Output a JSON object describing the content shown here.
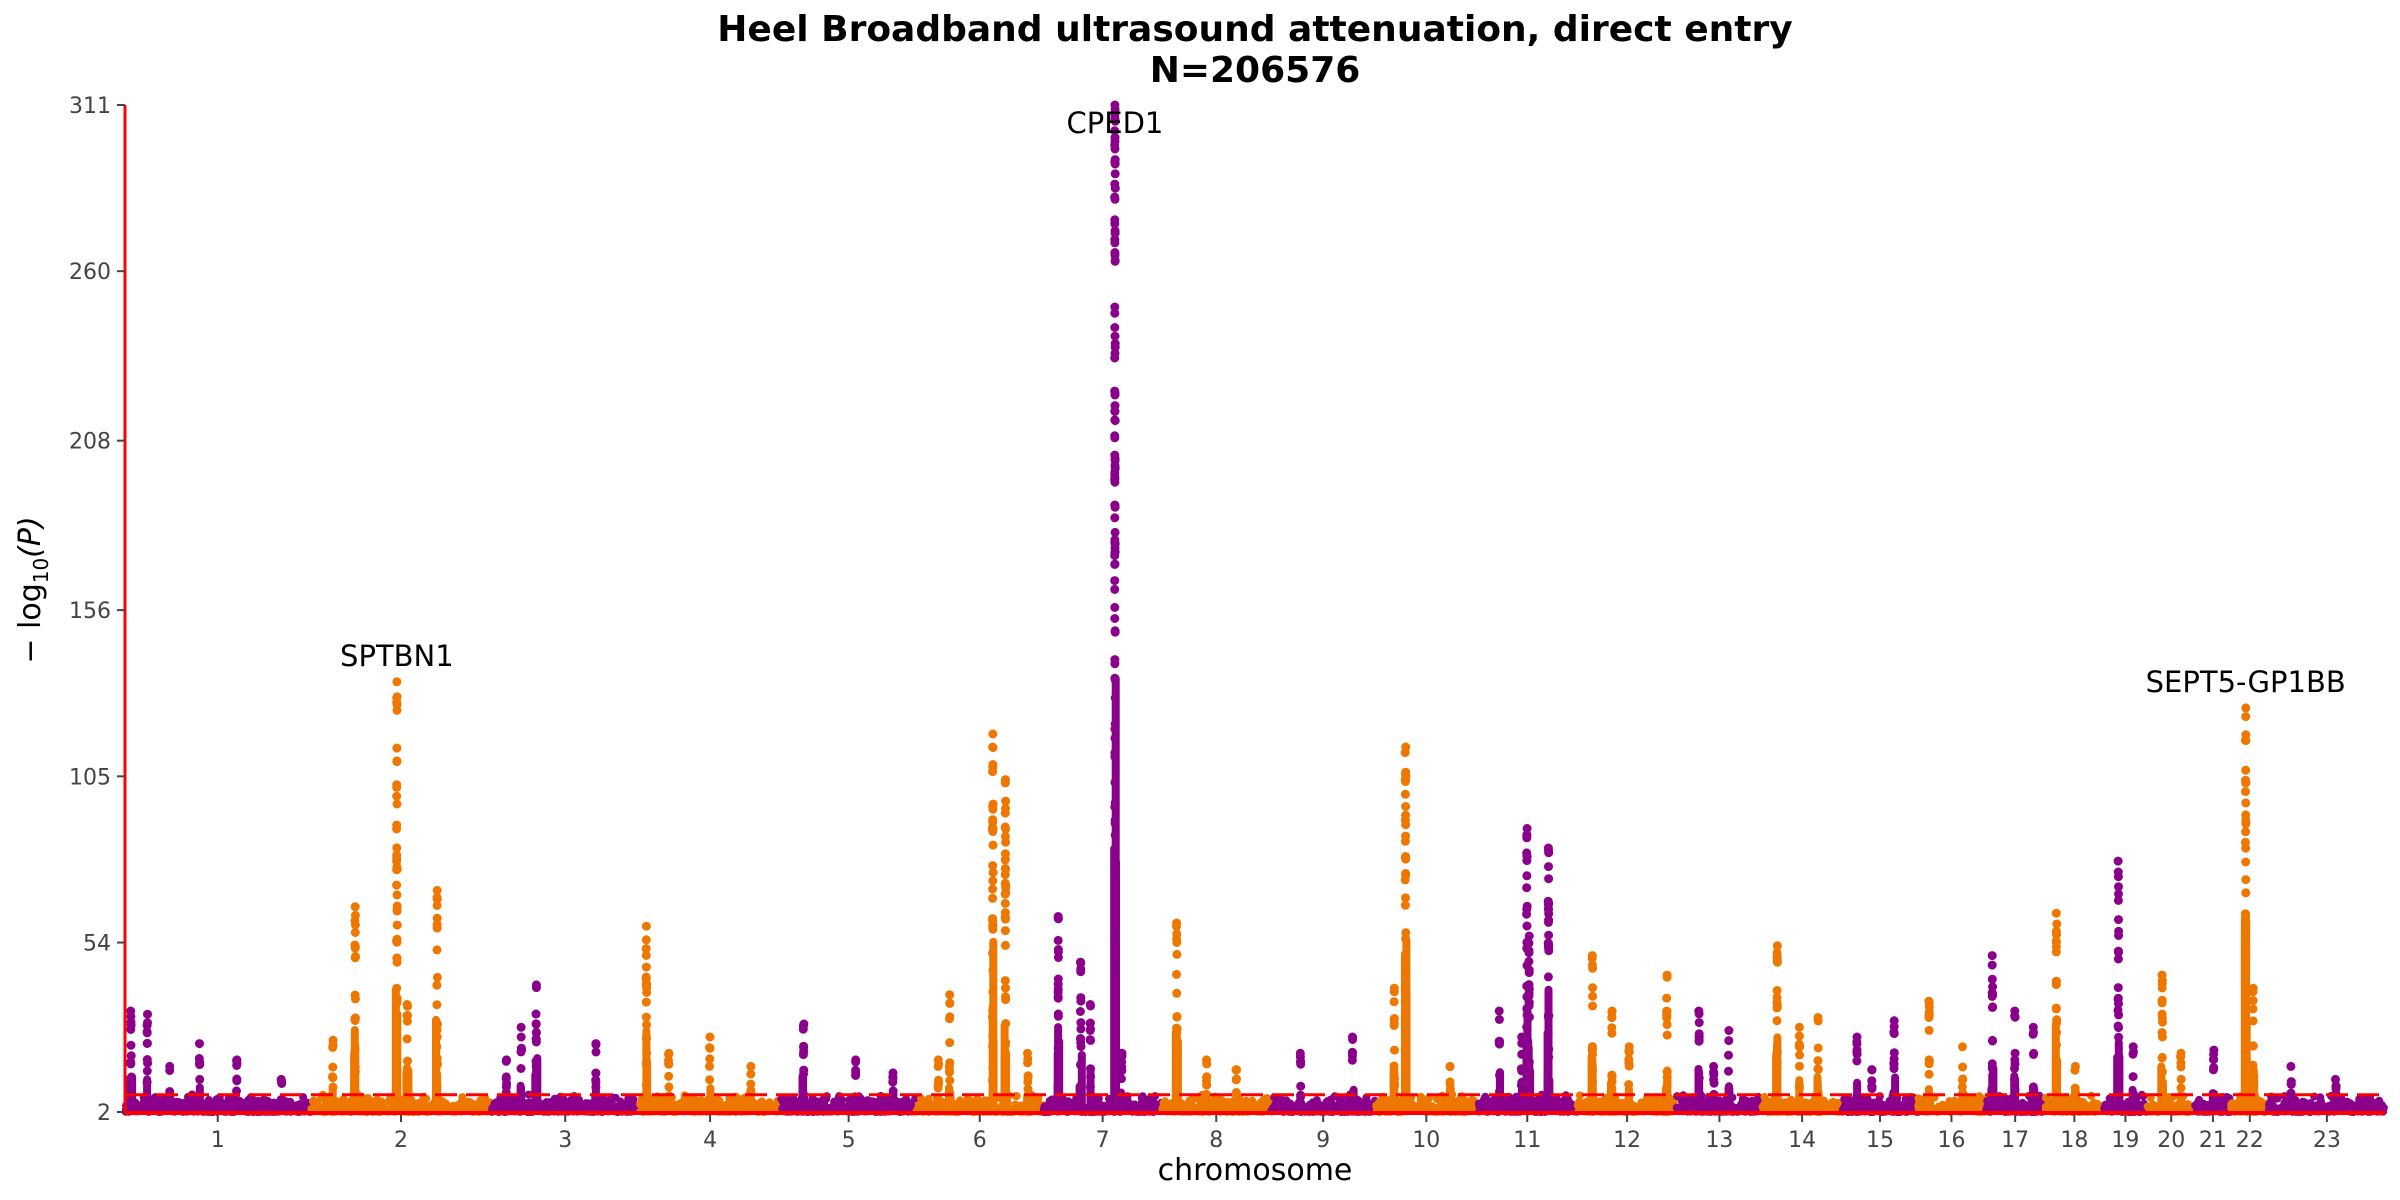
{
  "chart_data": {
    "type": "scatter",
    "subtype": "manhattan",
    "title": "Heel Broadband ultrasound attenuation, direct entry",
    "subtitle": "N=206576",
    "xlabel": "chromosome",
    "ylabel_parts": {
      "prefix": "− log",
      "sub": "10",
      "suffix": "(P)"
    },
    "yticks": [
      "2",
      "54",
      "105",
      "156",
      "208",
      "260",
      "311"
    ],
    "ylim": [
      2,
      311
    ],
    "significance_line": 7.3,
    "colors": {
      "odd": "#8B008B",
      "even": "#EE7700",
      "axis": "#FF0000",
      "threshold": "#FF0000"
    },
    "chromosomes": [
      {
        "label": "1",
        "start": 0,
        "end": 249,
        "peaks": [
          [
            8,
            33
          ],
          [
            30,
            32
          ],
          [
            100,
            23
          ],
          [
            150,
            18
          ],
          [
            210,
            12
          ],
          [
            60,
            16
          ]
        ]
      },
      {
        "label": "2",
        "start": 249,
        "end": 492,
        "peaks": [
          [
            30,
            24
          ],
          [
            60,
            65
          ],
          [
            116,
            134
          ],
          [
            170,
            70
          ],
          [
            130,
            35
          ]
        ]
      },
      {
        "label": "3",
        "start": 492,
        "end": 690,
        "peaks": [
          [
            40,
            28
          ],
          [
            60,
            41
          ],
          [
            140,
            23
          ],
          [
            20,
            18
          ]
        ]
      },
      {
        "label": "4",
        "start": 690,
        "end": 881,
        "peaks": [
          [
            10,
            59
          ],
          [
            95,
            25
          ],
          [
            40,
            20
          ],
          [
            150,
            16
          ]
        ]
      },
      {
        "label": "5",
        "start": 881,
        "end": 1062,
        "peaks": [
          [
            30,
            29
          ],
          [
            100,
            18
          ],
          [
            150,
            14
          ]
        ]
      },
      {
        "label": "6",
        "start": 1062,
        "end": 1233,
        "peaks": [
          [
            30,
            18
          ],
          [
            45,
            38
          ],
          [
            103,
            118
          ],
          [
            120,
            104
          ],
          [
            150,
            20
          ]
        ]
      },
      {
        "label": "7",
        "start": 1233,
        "end": 1392,
        "peaks": [
          [
            20,
            62
          ],
          [
            50,
            48
          ],
          [
            63,
            35
          ],
          [
            96,
            311
          ],
          [
            105,
            20
          ]
        ]
      },
      {
        "label": "8",
        "start": 1392,
        "end": 1538,
        "peaks": [
          [
            20,
            60
          ],
          [
            60,
            18
          ],
          [
            100,
            15
          ]
        ]
      },
      {
        "label": "9",
        "start": 1538,
        "end": 1679,
        "peaks": [
          [
            40,
            20
          ],
          [
            110,
            25
          ]
        ]
      },
      {
        "label": "10",
        "start": 1679,
        "end": 1815,
        "peaks": [
          [
            40,
            114
          ],
          [
            25,
            40
          ],
          [
            100,
            16
          ]
        ]
      },
      {
        "label": "11",
        "start": 1815,
        "end": 1950,
        "peaks": [
          [
            30,
            33
          ],
          [
            67,
            89
          ],
          [
            70,
            56
          ],
          [
            96,
            83
          ],
          [
            60,
            25
          ]
        ]
      },
      {
        "label": "12",
        "start": 1950,
        "end": 2083,
        "peaks": [
          [
            20,
            50
          ],
          [
            46,
            33
          ],
          [
            69,
            22
          ],
          [
            120,
            44
          ]
        ]
      },
      {
        "label": "13",
        "start": 2083,
        "end": 2198,
        "peaks": [
          [
            30,
            33
          ],
          [
            70,
            27
          ],
          [
            50,
            16
          ]
        ]
      },
      {
        "label": "14",
        "start": 2198,
        "end": 2305,
        "peaks": [
          [
            20,
            53
          ],
          [
            75,
            31
          ],
          [
            50,
            28
          ]
        ]
      },
      {
        "label": "15",
        "start": 2305,
        "end": 2407,
        "peaks": [
          [
            20,
            25
          ],
          [
            70,
            30
          ],
          [
            40,
            15
          ]
        ]
      },
      {
        "label": "16",
        "start": 2407,
        "end": 2497,
        "peaks": [
          [
            15,
            36
          ],
          [
            60,
            22
          ]
        ]
      },
      {
        "label": "17",
        "start": 2497,
        "end": 2578,
        "peaks": [
          [
            10,
            50
          ],
          [
            40,
            33
          ],
          [
            65,
            28
          ]
        ]
      },
      {
        "label": "18",
        "start": 2578,
        "end": 2656,
        "peaks": [
          [
            15,
            63
          ],
          [
            40,
            16
          ]
        ]
      },
      {
        "label": "19",
        "start": 2656,
        "end": 2715,
        "peaks": [
          [
            20,
            79
          ],
          [
            40,
            22
          ]
        ]
      },
      {
        "label": "20",
        "start": 2715,
        "end": 2779,
        "peaks": [
          [
            20,
            44
          ],
          [
            45,
            20
          ]
        ]
      },
      {
        "label": "21",
        "start": 2779,
        "end": 2827,
        "peaks": [
          [
            25,
            21
          ]
        ]
      },
      {
        "label": "22",
        "start": 2827,
        "end": 2878,
        "peaks": [
          [
            20,
            126
          ],
          [
            30,
            40
          ]
        ]
      },
      {
        "label": "23",
        "start": 2878,
        "end": 3034,
        "peaks": [
          [
            30,
            16
          ],
          [
            90,
            12
          ]
        ]
      }
    ],
    "annotations": [
      {
        "gene": "SPTBN1",
        "chr": "2",
        "pos": 116,
        "y": 134
      },
      {
        "gene": "CPED1",
        "chr": "7",
        "pos": 96,
        "y": 311
      },
      {
        "gene": "SEPT5-GP1BB",
        "chr": "22",
        "pos": 20,
        "y": 126
      }
    ]
  }
}
